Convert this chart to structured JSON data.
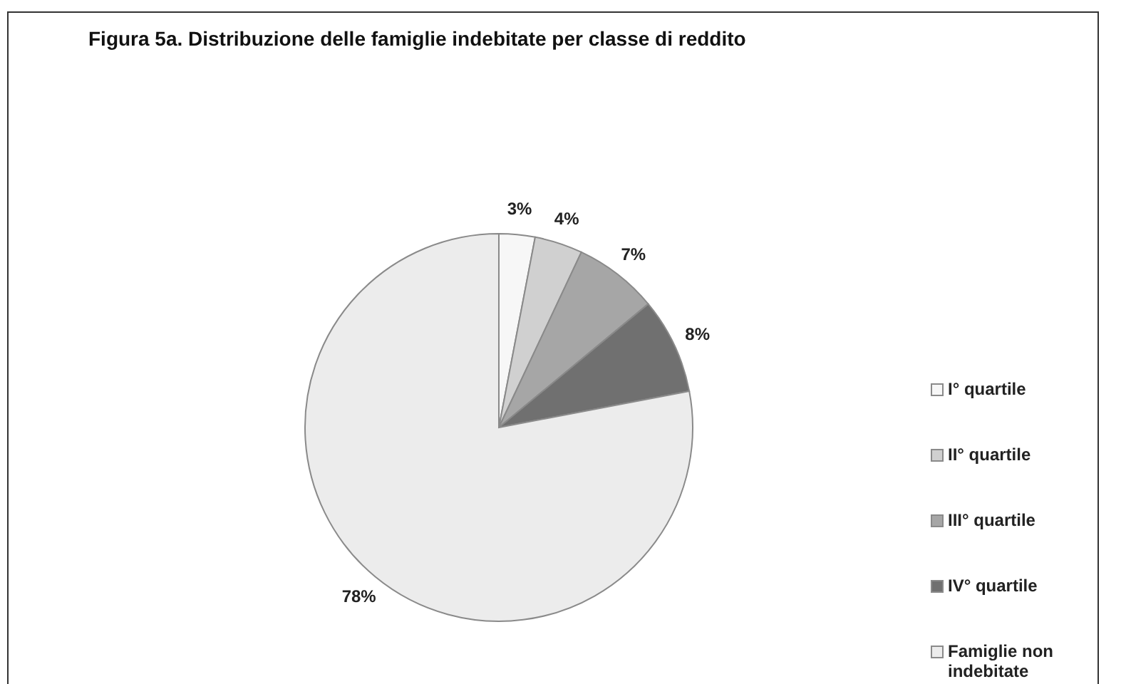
{
  "chart_data": {
    "type": "pie",
    "title": "Figura 5a. Distribuzione delle famiglie indebitate per classe di reddito",
    "categories": [
      "I° quartile",
      "II° quartile",
      "III° quartile",
      "IV° quartile",
      "Famiglie non indebitate"
    ],
    "values": [
      3,
      4,
      7,
      8,
      78
    ],
    "colors": [
      "#f7f7f7",
      "#d0d0d0",
      "#a6a6a6",
      "#707070",
      "#ececec"
    ],
    "value_labels": [
      "3%",
      "4%",
      "7%",
      "8%",
      "78%"
    ],
    "legend": "right"
  }
}
